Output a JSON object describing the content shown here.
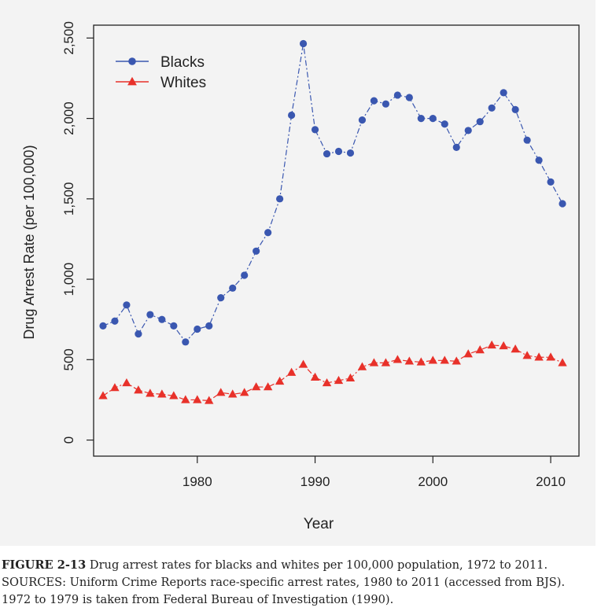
{
  "chart_data": {
    "type": "line",
    "title": "",
    "xlabel": "Year",
    "ylabel": "Drug Arrest Rate (per 100,000)",
    "xlim": [
      1971.2,
      2012.4
    ],
    "ylim": [
      -100,
      2580
    ],
    "xticks": [
      1980,
      1990,
      2000,
      2010
    ],
    "yticks": [
      0,
      500,
      1000,
      1500,
      2000,
      2500
    ],
    "ytick_labels": [
      "0",
      "500",
      "1,000",
      "1,500",
      "2,000",
      "2,500"
    ],
    "grid": false,
    "legend_position": "top-left",
    "x": [
      1972,
      1973,
      1974,
      1975,
      1976,
      1977,
      1978,
      1979,
      1980,
      1981,
      1982,
      1983,
      1984,
      1985,
      1986,
      1987,
      1988,
      1989,
      1990,
      1991,
      1992,
      1993,
      1994,
      1995,
      1996,
      1997,
      1998,
      1999,
      2000,
      2001,
      2002,
      2003,
      2004,
      2005,
      2006,
      2007,
      2008,
      2009,
      2010,
      2011
    ],
    "series": [
      {
        "name": "Blacks",
        "color": "#3a57b0",
        "marker": "circle",
        "values": [
          710,
          740,
          840,
          660,
          780,
          750,
          710,
          610,
          690,
          710,
          885,
          945,
          1025,
          1175,
          1290,
          1500,
          2020,
          2465,
          1930,
          1780,
          1795,
          1785,
          1990,
          2110,
          2090,
          2145,
          2130,
          2000,
          2000,
          1965,
          1820,
          1925,
          1980,
          2065,
          2160,
          2055,
          1865,
          1740,
          1605,
          1470
        ]
      },
      {
        "name": "Whites",
        "color": "#e8312a",
        "marker": "triangle",
        "values": [
          275,
          325,
          355,
          310,
          290,
          285,
          275,
          250,
          250,
          245,
          295,
          285,
          295,
          330,
          330,
          365,
          420,
          470,
          390,
          355,
          370,
          385,
          455,
          480,
          480,
          500,
          490,
          485,
          495,
          495,
          490,
          535,
          560,
          590,
          585,
          565,
          525,
          515,
          515,
          480
        ]
      }
    ]
  },
  "caption": {
    "label": "FIGURE 2-13",
    "text": " Drug arrest rates for blacks and whites per 100,000 population, 1972 to 2011.",
    "sources_line1": "SOURCES: Uniform Crime Reports race-specific arrest rates, 1980 to 2011 (accessed from BJS).",
    "sources_line2": "1972 to 1979 is taken from Federal Bureau of Investigation (1990)."
  }
}
